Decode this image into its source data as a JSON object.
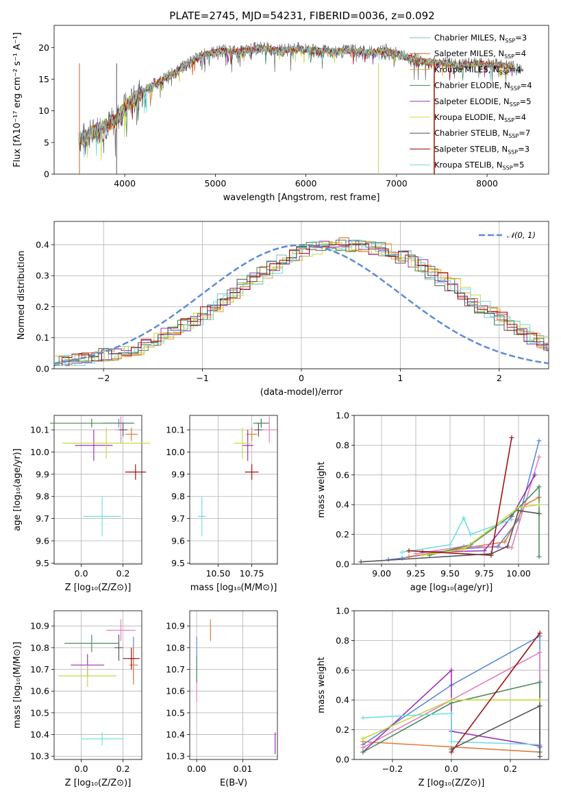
{
  "title": "PLATE=2745, MJD=54231, FIBERID=0036, z=0.092",
  "colors": {
    "grid": "#b0b0b0",
    "models": [
      "#7fbfbf",
      "#d85a1a",
      "#f0a020",
      "#3f7f4f",
      "#9a30b8",
      "#c8d840",
      "#505050",
      "#a00000",
      "#70d8e0"
    ],
    "solution_colors": [
      "#5c8ad6",
      "#e07b39",
      "#e080c0",
      "#9c2fb8",
      "#4a8a5a",
      "#c8d840",
      "#70dfe0",
      "#a01010",
      "#555555"
    ],
    "gaussian": "#5c8ad6"
  },
  "chart_data": [
    {
      "id": "spectrum",
      "type": "line",
      "title": "PLATE=2745, MJD=54231, FIBERID=0036, z=0.092",
      "xlabel": "wavelength [Angstrom, rest frame]",
      "ylabel": "Flux [fλ10⁻¹⁷ erg cm⁻² s⁻¹ A⁻¹]",
      "xlim": [
        3220,
        8680
      ],
      "ylim": [
        0,
        23.5
      ],
      "xticks": [
        4000,
        5000,
        6000,
        7000,
        8000
      ],
      "yticks": [
        0,
        5,
        10,
        15,
        20
      ],
      "grid": false,
      "legend_position": "top-right",
      "spectrum_shape": {
        "x": [
          3500,
          3700,
          3900,
          4000,
          4200,
          4300,
          4500,
          4700,
          4900,
          5100,
          5300,
          5500,
          5700,
          5900,
          6100,
          6300,
          6500,
          6700,
          6900,
          7100,
          7300,
          7500,
          7700,
          7900,
          8100,
          8300,
          8400
        ],
        "y": [
          5.5,
          7,
          8.5,
          10.5,
          13,
          14,
          15.5,
          17.5,
          19,
          19.5,
          19.3,
          20,
          19.5,
          19.8,
          19.5,
          19.3,
          19.5,
          19.2,
          19.5,
          18.5,
          17.8,
          17.5,
          17.2,
          17.5,
          17.2,
          17,
          16.8
        ]
      },
      "series": [
        {
          "name": "Chabrier MILES, N",
          "sub": "SSP",
          "suffix": "=3"
        },
        {
          "name": "Salpeter MILES, N",
          "sub": "SSP",
          "suffix": "=4"
        },
        {
          "name": "Kroupa MILES, N",
          "sub": "SSP",
          "suffix": "=4"
        },
        {
          "name": "Chabrier ELODIE, N",
          "sub": "SSP",
          "suffix": "=4"
        },
        {
          "name": "Salpeter ELODIE, N",
          "sub": "SSP",
          "suffix": "=5"
        },
        {
          "name": "Kroupa ELODIE, N",
          "sub": "SSP",
          "suffix": "=4"
        },
        {
          "name": "Chabrier STELIB, N",
          "sub": "SSP",
          "suffix": "=7"
        },
        {
          "name": "Salpeter STELIB, N",
          "sub": "SSP",
          "suffix": "=3"
        },
        {
          "name": "Kroupa STELIB, N",
          "sub": "SSP",
          "suffix": "=5"
        }
      ]
    },
    {
      "id": "residuals",
      "type": "line",
      "xlabel": "(data-model)/error",
      "ylabel": "Normed distribution",
      "xlim": [
        -2.5,
        2.5
      ],
      "ylim": [
        0,
        0.475
      ],
      "xticks": [
        -2,
        -1,
        0,
        1,
        2
      ],
      "yticks": [
        0.0,
        0.1,
        0.2,
        0.3,
        0.4
      ],
      "grid": true,
      "legend_position": "top-right",
      "reference_curve": {
        "name": "𝒩(0, 1)",
        "mean": 0,
        "sigma": 1
      },
      "bin_width": 0.1,
      "histogram_approx": [
        0.02,
        0.025,
        0.03,
        0.035,
        0.04,
        0.045,
        0.05,
        0.055,
        0.065,
        0.08,
        0.095,
        0.11,
        0.125,
        0.14,
        0.16,
        0.18,
        0.2,
        0.22,
        0.245,
        0.27,
        0.29,
        0.31,
        0.33,
        0.35,
        0.365,
        0.38,
        0.39,
        0.395,
        0.4,
        0.4,
        0.4,
        0.395,
        0.39,
        0.385,
        0.375,
        0.36,
        0.345,
        0.33,
        0.31,
        0.29,
        0.27,
        0.245,
        0.22,
        0.2,
        0.18,
        0.16,
        0.14,
        0.12,
        0.1,
        0.085,
        0.07
      ]
    },
    {
      "id": "age-vs-z",
      "type": "scatter",
      "xlabel": "Z [log₁₀(Z/Z⊙)]",
      "ylabel": "age  [log₁₀(age/yr)]",
      "xlim": [
        -0.13,
        0.29
      ],
      "ylim": [
        9.495,
        10.165
      ],
      "xticks": [
        0.0,
        0.2
      ],
      "yticks": [
        9.5,
        9.6,
        9.7,
        9.8,
        9.9,
        10.0,
        10.1
      ],
      "grid": true,
      "points": [
        {
          "x": 0.18,
          "y": 10.13,
          "xerr": 0.075,
          "yerr": 0.02
        },
        {
          "x": 0.24,
          "y": 10.08,
          "xerr": 0.03,
          "yerr": 0.03
        },
        {
          "x": 0.19,
          "y": 10.1,
          "xerr": 0.03,
          "yerr": 0.06
        },
        {
          "x": 0.06,
          "y": 10.03,
          "xerr": 0.09,
          "yerr": 0.07
        },
        {
          "x": 0.05,
          "y": 10.13,
          "xerr": 0.2,
          "yerr": 0.02
        },
        {
          "x": 0.12,
          "y": 10.04,
          "xerr": 0.21,
          "yerr": 0.07
        },
        {
          "x": 0.1,
          "y": 9.71,
          "xerr": 0.09,
          "yerr": 0.09
        },
        {
          "x": 0.26,
          "y": 9.91,
          "xerr": 0.05,
          "yerr": 0.035
        },
        {
          "x": 0.2,
          "y": 10.1,
          "xerr": 0.02,
          "yerr": 0.03
        }
      ]
    },
    {
      "id": "age-vs-mass",
      "type": "scatter",
      "xlabel": "mass [log₁₀(M/M⊙)]",
      "xlim": [
        10.29,
        10.94
      ],
      "ylim": [
        9.495,
        10.165
      ],
      "xticks": [
        10.5,
        10.75
      ],
      "yticks": [
        9.5,
        9.6,
        9.7,
        9.8,
        9.9,
        10.0,
        10.1
      ],
      "grid": true,
      "points": [
        {
          "x": 10.82,
          "y": 10.13,
          "xerr": 0.04,
          "yerr": 0.02
        },
        {
          "x": 10.75,
          "y": 10.08,
          "xerr": 0.04,
          "yerr": 0.03
        },
        {
          "x": 10.88,
          "y": 10.1,
          "xerr": 0.05,
          "yerr": 0.06
        },
        {
          "x": 10.72,
          "y": 10.03,
          "xerr": 0.04,
          "yerr": 0.07
        },
        {
          "x": 10.82,
          "y": 10.13,
          "xerr": 0.06,
          "yerr": 0.02
        },
        {
          "x": 10.68,
          "y": 10.04,
          "xerr": 0.06,
          "yerr": 0.07
        },
        {
          "x": 10.38,
          "y": 9.71,
          "xerr": 0.03,
          "yerr": 0.09
        },
        {
          "x": 10.75,
          "y": 9.91,
          "xerr": 0.05,
          "yerr": 0.035
        },
        {
          "x": 10.8,
          "y": 10.1,
          "xerr": 0.03,
          "yerr": 0.03
        }
      ]
    },
    {
      "id": "weight-vs-age",
      "type": "line",
      "xlabel": "age  [log₁₀(age/yr)]",
      "ylabel": "mass weight",
      "xlim": [
        8.8,
        10.22
      ],
      "ylim": [
        0,
        1.0
      ],
      "xticks": [
        9.0,
        9.25,
        9.5,
        9.75,
        10.0
      ],
      "yticks": [
        0.0,
        0.2,
        0.4,
        0.6,
        0.8,
        1.0
      ],
      "grid": true,
      "series": [
        {
          "x": [
            9.05,
            9.15,
            9.55,
            9.85,
            10.0,
            10.15
          ],
          "y": [
            0.03,
            0.04,
            0.1,
            0.12,
            0.3,
            0.83
          ]
        },
        {
          "x": [
            9.2,
            9.55,
            9.9,
            10.05,
            10.15
          ],
          "y": [
            0.05,
            0.1,
            0.15,
            0.4,
            0.45
          ]
        },
        {
          "x": [
            9.25,
            9.6,
            9.95,
            10.15
          ],
          "y": [
            0.07,
            0.12,
            0.11,
            0.72
          ]
        },
        {
          "x": [
            9.3,
            9.75,
            9.95,
            10.12
          ],
          "y": [
            0.08,
            0.09,
            0.32,
            0.6
          ]
        },
        {
          "x": [
            9.35,
            9.65,
            9.95,
            10.15,
            10.15
          ],
          "y": [
            0.06,
            0.13,
            0.33,
            0.52,
            0.05
          ]
        },
        {
          "x": [
            9.3,
            9.6,
            10.0,
            10.15
          ],
          "y": [
            0.06,
            0.1,
            0.38,
            0.4
          ]
        },
        {
          "x": [
            9.15,
            9.5,
            9.6,
            9.65,
            9.95
          ],
          "y": [
            0.08,
            0.13,
            0.31,
            0.2,
            0.3
          ]
        },
        {
          "x": [
            9.2,
            9.8,
            9.95
          ],
          "y": [
            0.09,
            0.06,
            0.85
          ]
        },
        {
          "x": [
            8.85,
            9.8,
            9.92,
            10.0,
            10.15
          ],
          "y": [
            0.015,
            0.07,
            0.12,
            0.36,
            0.34
          ]
        }
      ]
    },
    {
      "id": "mass-vs-z",
      "type": "scatter",
      "xlabel": "Z [log₁₀(Z/Z⊙)]",
      "ylabel": "mass [log₁₀(M/M⊙)]",
      "xlim": [
        -0.13,
        0.29
      ],
      "ylim": [
        10.285,
        10.97
      ],
      "xticks": [
        0.0,
        0.2
      ],
      "yticks": [
        10.3,
        10.4,
        10.5,
        10.6,
        10.7,
        10.8,
        10.9
      ],
      "grid": true,
      "points": [
        {
          "x": 0.25,
          "y": 10.75,
          "xerr": 0.02,
          "yerr": 0.1
        },
        {
          "x": 0.25,
          "y": 10.72,
          "xerr": 0.02,
          "yerr": 0.09
        },
        {
          "x": 0.19,
          "y": 10.88,
          "xerr": 0.07,
          "yerr": 0.05
        },
        {
          "x": 0.03,
          "y": 10.72,
          "xerr": 0.08,
          "yerr": 0.05
        },
        {
          "x": 0.05,
          "y": 10.82,
          "xerr": 0.13,
          "yerr": 0.04
        },
        {
          "x": 0.03,
          "y": 10.67,
          "xerr": 0.14,
          "yerr": 0.05
        },
        {
          "x": 0.1,
          "y": 10.38,
          "xerr": 0.1,
          "yerr": 0.03
        },
        {
          "x": 0.24,
          "y": 10.75,
          "xerr": 0.04,
          "yerr": 0.05
        },
        {
          "x": 0.18,
          "y": 10.8,
          "xerr": 0.02,
          "yerr": 0.06
        }
      ]
    },
    {
      "id": "mass-vs-ebv",
      "type": "scatter",
      "xlabel": "E(B-V)",
      "xlim": [
        -0.0015,
        0.0175
      ],
      "ylim": [
        10.285,
        10.97
      ],
      "xticks": [
        0.0,
        0.01
      ],
      "yticks": [
        10.3,
        10.4,
        10.5,
        10.6,
        10.7,
        10.8,
        10.9
      ],
      "grid": true,
      "points": [
        {
          "x": 0.0,
          "y": 10.75,
          "yerr": 0.1
        },
        {
          "x": 0.003,
          "y": 10.88,
          "yerr": 0.05
        },
        {
          "x": 0.0,
          "y": 10.6,
          "yerr": 0.05
        },
        {
          "x": 0.017,
          "y": 10.36,
          "yerr": 0.05
        },
        {
          "x": 0.0,
          "y": 10.7,
          "yerr": 0.06
        }
      ]
    },
    {
      "id": "weight-vs-z",
      "type": "line",
      "xlabel": "Z [log₁₀(Z/Z⊙)]",
      "ylabel": "mass weight",
      "xlim": [
        -0.33,
        0.33
      ],
      "ylim": [
        0,
        1.0
      ],
      "xticks": [
        -0.2,
        0.0,
        0.2
      ],
      "yticks": [
        0.0,
        0.2,
        0.4,
        0.6,
        0.8,
        1.0
      ],
      "grid": true,
      "series": [
        {
          "x": [
            -0.3,
            0.0,
            0.3,
            0.3
          ],
          "y": [
            0.1,
            0.5,
            0.83,
            0.08
          ]
        },
        {
          "x": [
            -0.3,
            0.3
          ],
          "y": [
            0.12,
            0.05
          ]
        },
        {
          "x": [
            -0.3,
            0.3,
            0.3
          ],
          "y": [
            0.08,
            0.72,
            0.1
          ]
        },
        {
          "x": [
            -0.3,
            0.0,
            0.0,
            0.3
          ],
          "y": [
            0.05,
            0.6,
            0.19,
            0.09
          ]
        },
        {
          "x": [
            -0.3,
            0.0,
            0.3,
            0.3
          ],
          "y": [
            0.05,
            0.38,
            0.52,
            0.05
          ]
        },
        {
          "x": [
            -0.3,
            0.0,
            0.3
          ],
          "y": [
            0.14,
            0.4,
            0.4
          ]
        },
        {
          "x": [
            -0.3,
            0.0,
            0.0,
            0.3
          ],
          "y": [
            0.28,
            0.31,
            0.12,
            0.1
          ]
        },
        {
          "x": [
            0.0,
            0.3
          ],
          "y": [
            0.05,
            0.85
          ]
        },
        {
          "x": [
            0.0,
            0.3,
            0.3
          ],
          "y": [
            0.07,
            0.36,
            0.02
          ]
        }
      ]
    }
  ]
}
